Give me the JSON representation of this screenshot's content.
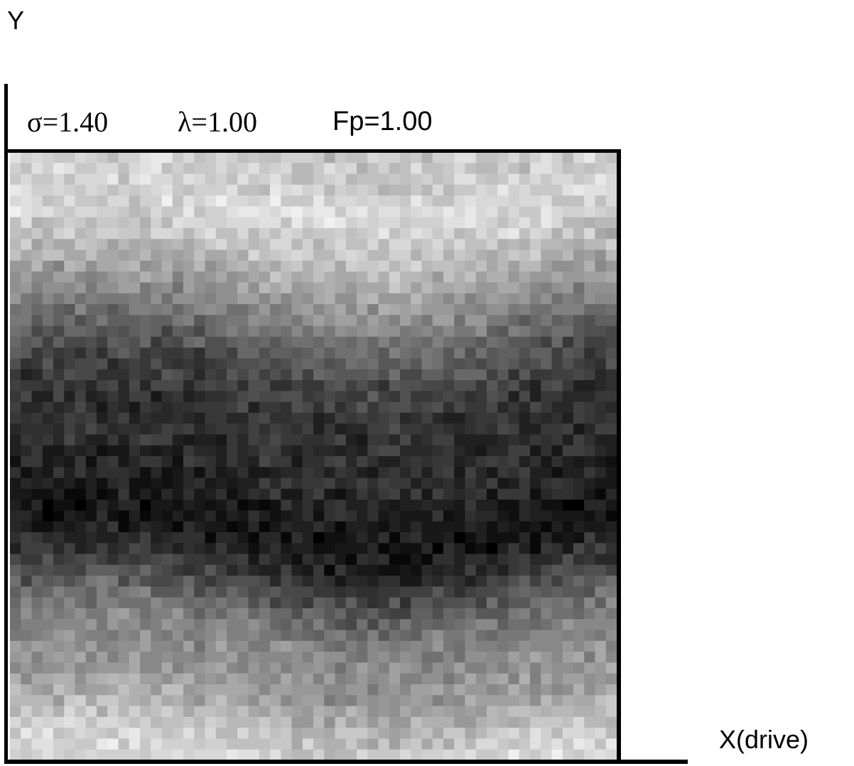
{
  "chart_data": {
    "type": "heatmap",
    "title": "",
    "xlabel": "X(drive)",
    "ylabel": "Y",
    "parameters": [
      {
        "symbol": "σ",
        "value": "=1.40"
      },
      {
        "symbol": "λ",
        "value": "=1.00"
      },
      {
        "symbol": "",
        "value": "Fp=1.00"
      }
    ],
    "colormap": "grayscale",
    "grid_cols": 56,
    "grid_rows": 56,
    "row_mean_gray_top_to_bottom": [
      200,
      205,
      210,
      214,
      212,
      205,
      195,
      180,
      165,
      150,
      135,
      118,
      100,
      85,
      72,
      62,
      55,
      52,
      50,
      48,
      45,
      40,
      35,
      28,
      22,
      25,
      40,
      60,
      80,
      100,
      118,
      132,
      140,
      145,
      150,
      162,
      178,
      192,
      205,
      215
    ]
  }
}
